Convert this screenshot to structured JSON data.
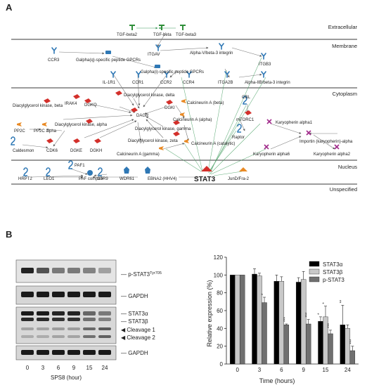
{
  "panelA": {
    "label": "A",
    "layers": {
      "extracellular": "Extracellular",
      "membrane": "Membrane",
      "cytoplasm": "Cytoplasm",
      "nucleus": "Nucleus",
      "unspecified": "Unspecified"
    },
    "nodes": {
      "tgfb2": "TGF-beta2",
      "tgfb": "TGF-beta",
      "tgfb3": "TGF-beta3",
      "ccr3": "CCR3",
      "itgav": "ITGAV",
      "alphav_beta3": "Alpha-V/beta-3 integrin",
      "itgb3": "ITGB3",
      "galpha_q": "Galpha(q)-specific peptide GPCRs",
      "galpha_i": "Galpha(i)-specific peptide GPCRs",
      "il1r1": "IL-1R1",
      "ccr1": "CCR1",
      "ccr2": "CCR2",
      "ccr4": "CCR4",
      "itga2b": "ITGA2B",
      "alphaiib_beta3": "Alpha-IIB/beta-3 integrin",
      "dgk_beta": "Diacylglycerol kinase, beta",
      "irak4": "IRAK4",
      "dgkq": "DGKQ",
      "dgk_delta": "Diacylglycerol kinase, delta",
      "dgki": "DGKI",
      "dagr": "DAGR",
      "calcineurin_beta": "Calcineurin A (beta)",
      "calcineurin_alpha": "Calcineurin A (alpha)",
      "dgk_alpha": "Diacylglycerol kinase, alpha",
      "dgk_gamma": "Diacylglycerol kinase, gamma",
      "dgk_zeta": "Diacylglycerol kinase, zeta",
      "calcineurin_catalytic": "Calcineurin A (catalytic)",
      "calcineurin_gamma": "Calcineurin A (gamma)",
      "pp2c": "PP2C",
      "pp2c_alpha": "PP2C alpha",
      "caldesmon": "Caldesmon",
      "cdk6": "CDK6",
      "dgke": "DGKE",
      "dgkh": "DGKH",
      "gbl": "GBL",
      "mtorc1": "mTORC1",
      "raptor": "Raptor",
      "karyopherin_alpha1": "Karyopherin alpha1",
      "importin": "Importin (karyopherin)-alpha",
      "karyopherin_alpha6": "Karyopherin alpha6",
      "karyopherin_alpha2": "Karyopherin alpha2",
      "paf1": "PAF1",
      "hrpt2": "HRPT2",
      "leo1": "LEO1",
      "paf_complex": "PAF complex",
      "wdr61": "WDR61",
      "ctr9": "CTR9",
      "ebna2": "EBNA2 (HHV4)",
      "stat3": "STAT3",
      "jund": "JunD/Fra-2"
    }
  },
  "panelB": {
    "label": "B",
    "blot": {
      "label_pstat3": "p-STAT3",
      "label_pstat3_sup": "Tyr705",
      "label_gapdh_1": "GAPDH",
      "label_stat3a": "STAT3α",
      "label_stat3b": "STAT3β",
      "label_cleavage1": "Cleavage 1",
      "label_cleavage2": "Cleavage 2",
      "label_gapdh_2": "GAPDH",
      "lanes": [
        "0",
        "3",
        "6",
        "9",
        "15",
        "24"
      ],
      "xlabel": "SPS8 (hour)"
    },
    "chart_data": {
      "type": "bar",
      "categories": [
        "0",
        "3",
        "6",
        "9",
        "15",
        "24"
      ],
      "series": [
        {
          "name": "STAT3α",
          "color": "#000000",
          "values": [
            100,
            101,
            93,
            92,
            48,
            44
          ],
          "errors": [
            0,
            6,
            7,
            5,
            5,
            22
          ]
        },
        {
          "name": "STAT3β",
          "color": "#c8c8c8",
          "values": [
            100,
            99,
            93,
            95,
            53,
            40
          ],
          "errors": [
            0,
            3,
            5,
            9,
            12,
            4
          ]
        },
        {
          "name": "p-STAT3",
          "color": "#707070",
          "values": [
            100,
            69,
            44,
            45,
            34,
            15
          ],
          "errors": [
            0,
            6,
            1,
            5,
            4,
            5
          ]
        }
      ],
      "significance": [
        [
          "",
          "",
          ""
        ],
        [
          "",
          "",
          "*"
        ],
        [
          "",
          "",
          "***"
        ],
        [
          "",
          "",
          "***"
        ],
        [
          "*",
          "*",
          "***"
        ],
        [
          "**",
          "",
          "***"
        ]
      ],
      "xlabel": "Time (hours)",
      "ylabel": "Relative expression (%)",
      "ylim": [
        0,
        120
      ],
      "yticks": [
        "0",
        "20",
        "40",
        "60",
        "80",
        "100",
        "120"
      ],
      "legend_position": "top-right",
      "grid": false
    }
  }
}
